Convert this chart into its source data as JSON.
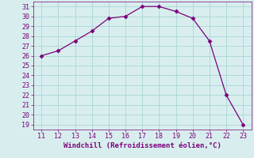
{
  "x": [
    11,
    12,
    13,
    14,
    15,
    16,
    17,
    18,
    19,
    20,
    21,
    22,
    23
  ],
  "y": [
    26.0,
    26.5,
    27.5,
    28.5,
    29.8,
    30.0,
    31.0,
    31.0,
    30.5,
    29.8,
    27.5,
    22.0,
    19.0
  ],
  "line_color": "#7B007B",
  "marker": "D",
  "marker_size": 2.5,
  "background_color": "#d8eeee",
  "grid_color": "#b0d8d8",
  "xlabel": "Windchill (Refroidissement éolien,°C)",
  "xlabel_color": "#7B007B",
  "xlabel_fontsize": 6.5,
  "tick_color": "#7B007B",
  "tick_fontsize": 6,
  "xlim": [
    10.5,
    23.5
  ],
  "ylim": [
    18.5,
    31.5
  ],
  "yticks": [
    19,
    20,
    21,
    22,
    23,
    24,
    25,
    26,
    27,
    28,
    29,
    30,
    31
  ],
  "xticks": [
    11,
    12,
    13,
    14,
    15,
    16,
    17,
    18,
    19,
    20,
    21,
    22,
    23
  ]
}
